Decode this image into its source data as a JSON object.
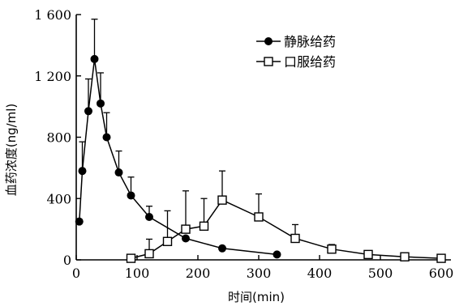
{
  "chart_data": {
    "type": "line",
    "title": "",
    "xlabel": "时间(min)",
    "ylabel": "血药浓度(ng/ml)",
    "xlim": [
      0,
      600
    ],
    "ylim": [
      0,
      1600
    ],
    "xticks": [
      0,
      100,
      200,
      300,
      400,
      500,
      600
    ],
    "yticks": [
      0,
      400,
      800,
      1200,
      1600
    ],
    "ytick_labels": [
      "0",
      "400",
      "800",
      "1 200",
      "1 600"
    ],
    "xtick_labels": [
      "0",
      "100",
      "200",
      "300",
      "400",
      "500",
      "600"
    ],
    "grid": false,
    "legend_position": "top-right",
    "series": [
      {
        "name": "静脉给药",
        "marker": "filled-circle",
        "x": [
          5,
          10,
          20,
          30,
          40,
          50,
          70,
          90,
          120,
          180,
          240,
          330
        ],
        "y": [
          250,
          580,
          970,
          1310,
          1020,
          800,
          570,
          420,
          280,
          140,
          75,
          35
        ],
        "error": [
          0,
          190,
          210,
          260,
          200,
          160,
          140,
          120,
          70,
          0,
          0,
          0
        ]
      },
      {
        "name": "口服给药",
        "marker": "open-square",
        "x": [
          90,
          120,
          150,
          180,
          210,
          240,
          300,
          360,
          420,
          480,
          540,
          600
        ],
        "y": [
          10,
          40,
          120,
          200,
          220,
          390,
          280,
          140,
          70,
          35,
          20,
          10
        ],
        "error": [
          20,
          95,
          200,
          250,
          180,
          190,
          150,
          90,
          30,
          0,
          0,
          0
        ]
      }
    ]
  }
}
